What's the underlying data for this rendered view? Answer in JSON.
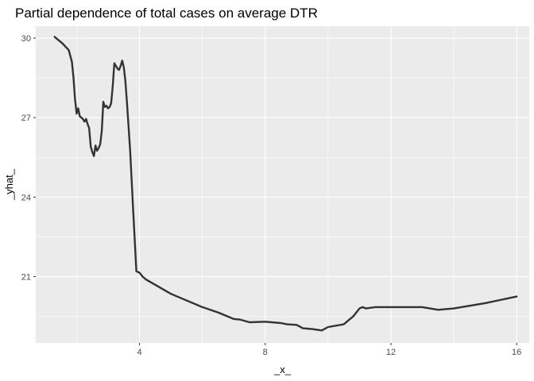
{
  "chart_data": {
    "type": "line",
    "title": "Partial dependence of total cases on average DTR",
    "xlabel": "_x_",
    "ylabel": "_yhat_",
    "xlim": [
      0.7,
      16.4
    ],
    "ylim": [
      18.5,
      30.45
    ],
    "x_ticks": [
      4,
      8,
      12,
      16
    ],
    "y_ticks": [
      21,
      24,
      27,
      30
    ],
    "x_tick_labels": [
      "4",
      "8",
      "12",
      "16"
    ],
    "y_tick_labels": [
      "21",
      "24",
      "27",
      "30"
    ],
    "grid": true,
    "legend": "none",
    "colors": {
      "panel": "#EBEBEB",
      "grid_major": "#FFFFFF",
      "line": "#333333",
      "tick": "#333333"
    },
    "series": [
      {
        "x": [
          1.3,
          1.55,
          1.75,
          1.85,
          1.9,
          1.95,
          2.0,
          2.05,
          2.1,
          2.15,
          2.2,
          2.25,
          2.3,
          2.35,
          2.4,
          2.45,
          2.5,
          2.55,
          2.6,
          2.65,
          2.7,
          2.75,
          2.8,
          2.85,
          2.9,
          2.95,
          3.0,
          3.05,
          3.1,
          3.15,
          3.2,
          3.25,
          3.3,
          3.35,
          3.4,
          3.45,
          3.5,
          3.55,
          3.6,
          3.7,
          3.8,
          3.9,
          4.0,
          4.1,
          4.2,
          5.0,
          6.0,
          6.5,
          7.0,
          7.2,
          7.5,
          8.0,
          8.5,
          8.7,
          9.0,
          9.2,
          9.5,
          9.8,
          10.0,
          10.5,
          10.8,
          11.0,
          11.1,
          11.2,
          11.5,
          12.0,
          12.5,
          13.0,
          13.5,
          14.0,
          15.0,
          16.0
        ],
        "y": [
          30.05,
          29.8,
          29.55,
          29.1,
          28.5,
          27.7,
          27.15,
          27.35,
          27.05,
          27.0,
          26.95,
          26.85,
          26.95,
          26.75,
          26.6,
          25.9,
          25.7,
          25.55,
          25.95,
          25.75,
          25.85,
          26.0,
          26.5,
          27.6,
          27.4,
          27.45,
          27.35,
          27.4,
          27.55,
          28.2,
          29.05,
          28.95,
          28.85,
          28.8,
          28.95,
          29.15,
          28.9,
          28.4,
          27.6,
          25.8,
          23.5,
          21.2,
          21.15,
          21.0,
          20.9,
          20.35,
          19.85,
          19.65,
          19.4,
          19.38,
          19.28,
          19.3,
          19.25,
          19.2,
          19.18,
          19.05,
          19.02,
          18.97,
          19.1,
          19.2,
          19.5,
          19.8,
          19.85,
          19.8,
          19.85,
          19.85,
          19.85,
          19.85,
          19.75,
          19.8,
          20.0,
          20.25
        ]
      }
    ]
  }
}
